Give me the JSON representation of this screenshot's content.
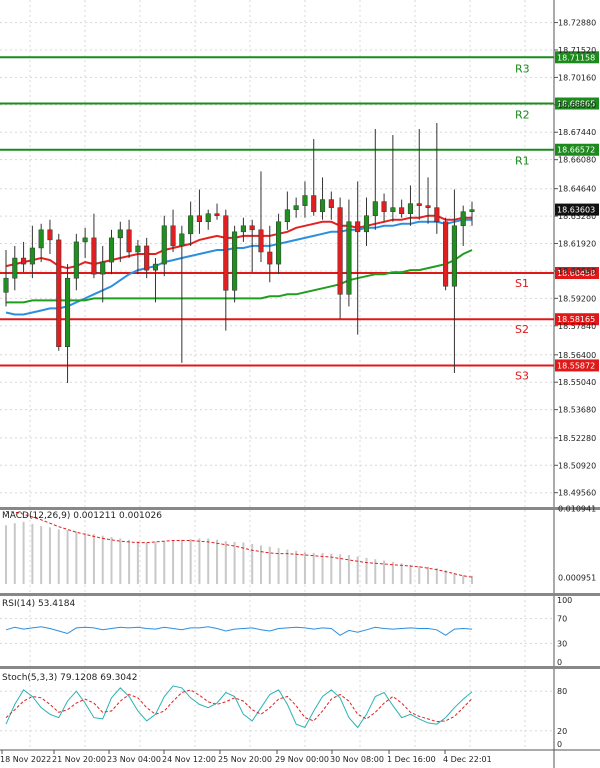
{
  "chart_data": {
    "type": "candlestick",
    "price_panel": {
      "ylim": [
        18.489,
        18.74
      ],
      "y_ticks": [
        "18.72880",
        "18.71520",
        "18.70160",
        "18.68800",
        "18.67440",
        "18.66080",
        "18.64640",
        "18.63280",
        "18.61920",
        "18.60560",
        "18.59200",
        "18.57840",
        "18.56400",
        "18.55040",
        "18.53680",
        "18.52280",
        "18.50920",
        "18.49560"
      ],
      "last_price": "18.63603",
      "levels": [
        {
          "name": "R3",
          "value": 18.71158,
          "label": "18.71158",
          "kind": "resistance"
        },
        {
          "name": "R2",
          "value": 18.68865,
          "label": "18.68865",
          "kind": "resistance"
        },
        {
          "name": "R1",
          "value": 18.66572,
          "label": "18.66572",
          "kind": "resistance"
        },
        {
          "name": "S1",
          "value": 18.60458,
          "label": "18.60458",
          "kind": "support"
        },
        {
          "name": "S2",
          "value": 18.58165,
          "label": "18.58165",
          "kind": "support"
        },
        {
          "name": "S3",
          "value": 18.55872,
          "label": "18.55872",
          "kind": "support"
        }
      ],
      "candles": [
        [
          18.595,
          18.616,
          18.588,
          18.602
        ],
        [
          18.602,
          18.618,
          18.596,
          18.612
        ],
        [
          18.612,
          18.62,
          18.605,
          18.609
        ],
        [
          18.609,
          18.628,
          18.602,
          18.617
        ],
        [
          18.617,
          18.629,
          18.61,
          18.626
        ],
        [
          18.626,
          18.631,
          18.614,
          18.621
        ],
        [
          18.621,
          18.624,
          18.566,
          18.568
        ],
        [
          18.568,
          18.609,
          18.55,
          18.602
        ],
        [
          18.602,
          18.624,
          18.596,
          18.62
        ],
        [
          18.62,
          18.627,
          18.612,
          18.622
        ],
        [
          18.622,
          18.634,
          18.602,
          18.604
        ],
        [
          18.604,
          18.618,
          18.59,
          18.61
        ],
        [
          18.61,
          18.626,
          18.604,
          18.622
        ],
        [
          18.622,
          18.63,
          18.61,
          18.626
        ],
        [
          18.626,
          18.631,
          18.612,
          18.615
        ],
        [
          18.615,
          18.621,
          18.604,
          18.618
        ],
        [
          18.618,
          18.622,
          18.602,
          18.606
        ],
        [
          18.606,
          18.612,
          18.59,
          18.609
        ],
        [
          18.609,
          18.633,
          18.603,
          18.628
        ],
        [
          18.628,
          18.636,
          18.615,
          18.618
        ],
        [
          18.618,
          18.628,
          18.56,
          18.624
        ],
        [
          18.624,
          18.64,
          18.618,
          18.633
        ],
        [
          18.633,
          18.646,
          18.624,
          18.63
        ],
        [
          18.63,
          18.636,
          18.626,
          18.634
        ],
        [
          18.634,
          18.639,
          18.631,
          18.633
        ],
        [
          18.633,
          18.636,
          18.576,
          18.596
        ],
        [
          18.596,
          18.628,
          18.59,
          18.625
        ],
        [
          18.625,
          18.632,
          18.62,
          18.628
        ],
        [
          18.628,
          18.631,
          18.605,
          18.626
        ],
        [
          18.626,
          18.655,
          18.61,
          18.615
        ],
        [
          18.615,
          18.628,
          18.6,
          18.609
        ],
        [
          18.609,
          18.634,
          18.604,
          18.63
        ],
        [
          18.63,
          18.645,
          18.626,
          18.636
        ],
        [
          18.636,
          18.642,
          18.632,
          18.638
        ],
        [
          18.638,
          18.65,
          18.632,
          18.643
        ],
        [
          18.643,
          18.671,
          18.633,
          18.635
        ],
        [
          18.635,
          18.652,
          18.631,
          18.641
        ],
        [
          18.641,
          18.645,
          18.631,
          18.637
        ],
        [
          18.637,
          18.642,
          18.582,
          18.594
        ],
        [
          18.594,
          18.641,
          18.588,
          18.63
        ],
        [
          18.63,
          18.65,
          18.574,
          18.625
        ],
        [
          18.625,
          18.642,
          18.618,
          18.633
        ],
        [
          18.633,
          18.676,
          18.626,
          18.64
        ],
        [
          18.64,
          18.644,
          18.63,
          18.635
        ],
        [
          18.635,
          18.673,
          18.63,
          18.637
        ],
        [
          18.637,
          18.641,
          18.632,
          18.634
        ],
        [
          18.634,
          18.648,
          18.628,
          18.639
        ],
        [
          18.639,
          18.676,
          18.631,
          18.638
        ],
        [
          18.638,
          18.652,
          18.629,
          18.637
        ],
        [
          18.637,
          18.679,
          18.624,
          18.63
        ],
        [
          18.63,
          18.632,
          18.596,
          18.598
        ],
        [
          18.598,
          18.646,
          18.555,
          18.628
        ],
        [
          18.628,
          18.638,
          18.618,
          18.635
        ],
        [
          18.635,
          18.64,
          18.628,
          18.636
        ]
      ],
      "moving_averages": [
        {
          "color": "#e32222",
          "values": [
            18.608,
            18.609,
            18.61,
            18.611,
            18.612,
            18.611,
            18.608,
            18.607,
            18.608,
            18.61,
            18.609,
            18.61,
            18.611,
            18.612,
            18.613,
            18.614,
            18.614,
            18.614,
            18.616,
            18.617,
            18.618,
            18.619,
            18.621,
            18.622,
            18.623,
            18.622,
            18.622,
            18.623,
            18.623,
            18.623,
            18.623,
            18.624,
            18.625,
            18.627,
            18.628,
            18.629,
            18.63,
            18.63,
            18.628,
            18.628,
            18.627,
            18.628,
            18.629,
            18.63,
            18.631,
            18.631,
            18.632,
            18.632,
            18.633,
            18.633,
            18.631,
            18.631,
            18.632,
            18.632
          ]
        },
        {
          "color": "#2b8fe0",
          "values": [
            18.585,
            18.584,
            18.584,
            18.585,
            18.586,
            18.587,
            18.587,
            18.588,
            18.59,
            18.592,
            18.594,
            18.596,
            18.598,
            18.601,
            18.604,
            18.606,
            18.607,
            18.608,
            18.61,
            18.611,
            18.612,
            18.613,
            18.614,
            18.615,
            18.616,
            18.616,
            18.617,
            18.617,
            18.618,
            18.618,
            18.618,
            18.619,
            18.62,
            18.621,
            18.622,
            18.623,
            18.624,
            18.625,
            18.625,
            18.626,
            18.626,
            18.627,
            18.627,
            18.628,
            18.628,
            18.629,
            18.629,
            18.63,
            18.63,
            18.63,
            18.629,
            18.63,
            18.631,
            18.631
          ]
        },
        {
          "color": "#1f9e1f",
          "values": [
            18.59,
            18.59,
            18.59,
            18.591,
            18.591,
            18.591,
            18.591,
            18.591,
            18.591,
            18.591,
            18.592,
            18.592,
            18.592,
            18.592,
            18.592,
            18.592,
            18.592,
            18.592,
            18.592,
            18.592,
            18.592,
            18.592,
            18.592,
            18.592,
            18.592,
            18.592,
            18.592,
            18.592,
            18.592,
            18.592,
            18.593,
            18.593,
            18.594,
            18.594,
            18.595,
            18.596,
            18.597,
            18.598,
            18.599,
            18.601,
            18.602,
            18.603,
            18.604,
            18.604,
            18.605,
            18.605,
            18.606,
            18.606,
            18.607,
            18.608,
            18.609,
            18.611,
            18.614,
            18.616
          ]
        }
      ]
    },
    "macd": {
      "label": "MACD(12,26,9) 0.001211 0.001026",
      "y_ticks": [
        "0.010941",
        "0.000951"
      ],
      "ylim": [
        -0.001,
        0.011
      ],
      "histogram": [
        0.0085,
        0.0088,
        0.009,
        0.0087,
        0.0084,
        0.0082,
        0.0079,
        0.0078,
        0.0076,
        0.0074,
        0.0072,
        0.007,
        0.0068,
        0.0066,
        0.0064,
        0.0062,
        0.006,
        0.0061,
        0.0062,
        0.0063,
        0.0064,
        0.0065,
        0.0066,
        0.0066,
        0.0064,
        0.0062,
        0.0061,
        0.006,
        0.0058,
        0.0056,
        0.0054,
        0.0052,
        0.005,
        0.0048,
        0.0046,
        0.0045,
        0.0045,
        0.0044,
        0.0043,
        0.0042,
        0.004,
        0.0038,
        0.0036,
        0.0034,
        0.0032,
        0.003,
        0.0028,
        0.0026,
        0.0025,
        0.0023,
        0.002,
        0.0016,
        0.0013,
        0.0012
      ],
      "signal": [
        0.0105,
        0.0104,
        0.0101,
        0.0097,
        0.0093,
        0.0088,
        0.0083,
        0.0079,
        0.0075,
        0.0072,
        0.0069,
        0.0066,
        0.0064,
        0.0062,
        0.0061,
        0.006,
        0.006,
        0.0061,
        0.0062,
        0.0063,
        0.0063,
        0.0063,
        0.0062,
        0.0061,
        0.0059,
        0.0057,
        0.0055,
        0.0052,
        0.0049,
        0.0047,
        0.0045,
        0.0044,
        0.0044,
        0.0043,
        0.0042,
        0.0041,
        0.004,
        0.0039,
        0.0037,
        0.0035,
        0.0033,
        0.0031,
        0.003,
        0.0029,
        0.0028,
        0.0027,
        0.0026,
        0.0025,
        0.0023,
        0.0021,
        0.0018,
        0.0015,
        0.0012,
        0.001
      ]
    },
    "rsi": {
      "label": "RSI(14) 53.4184",
      "y_ticks": [
        "100",
        "70",
        "30",
        "0"
      ],
      "ylim": [
        0,
        100
      ],
      "values": [
        52,
        56,
        53,
        55,
        57,
        54,
        50,
        46,
        55,
        56,
        55,
        52,
        54,
        56,
        55,
        56,
        54,
        53,
        56,
        54,
        52,
        55,
        55,
        57,
        54,
        50,
        53,
        54,
        55,
        52,
        50,
        54,
        55,
        56,
        55,
        53,
        55,
        54,
        43,
        51,
        48,
        52,
        56,
        54,
        53,
        54,
        55,
        54,
        54,
        52,
        43,
        53,
        54,
        53
      ]
    },
    "stoch": {
      "label": "Stoch(5,3,3) 79.1208 69.3042",
      "y_ticks": [
        "80",
        "20",
        "0"
      ],
      "ylim": [
        0,
        100
      ],
      "k": [
        30,
        60,
        82,
        72,
        55,
        45,
        40,
        65,
        80,
        62,
        40,
        38,
        70,
        85,
        72,
        50,
        35,
        45,
        72,
        88,
        85,
        70,
        60,
        55,
        62,
        78,
        72,
        45,
        35,
        55,
        75,
        82,
        60,
        30,
        25,
        50,
        72,
        82,
        70,
        40,
        25,
        45,
        72,
        78,
        58,
        40,
        45,
        38,
        32,
        30,
        40,
        55,
        68,
        79
      ],
      "d": [
        40,
        52,
        65,
        72,
        70,
        60,
        48,
        52,
        62,
        68,
        62,
        48,
        50,
        65,
        75,
        70,
        55,
        45,
        50,
        65,
        78,
        82,
        74,
        64,
        60,
        64,
        70,
        65,
        52,
        45,
        55,
        68,
        72,
        58,
        40,
        35,
        50,
        68,
        75,
        65,
        45,
        38,
        48,
        62,
        72,
        62,
        48,
        42,
        38,
        34,
        35,
        42,
        55,
        69
      ]
    },
    "x_tick_labels": [
      "18 Nov 2022",
      "21 Nov 20:00",
      "23 Nov 04:00",
      "24 Nov 12:00",
      "25 Nov 20:00",
      "29 Nov 00:00",
      "30 Nov 08:00",
      "1 Dec 16:00",
      "4 Dec 22:01"
    ]
  }
}
